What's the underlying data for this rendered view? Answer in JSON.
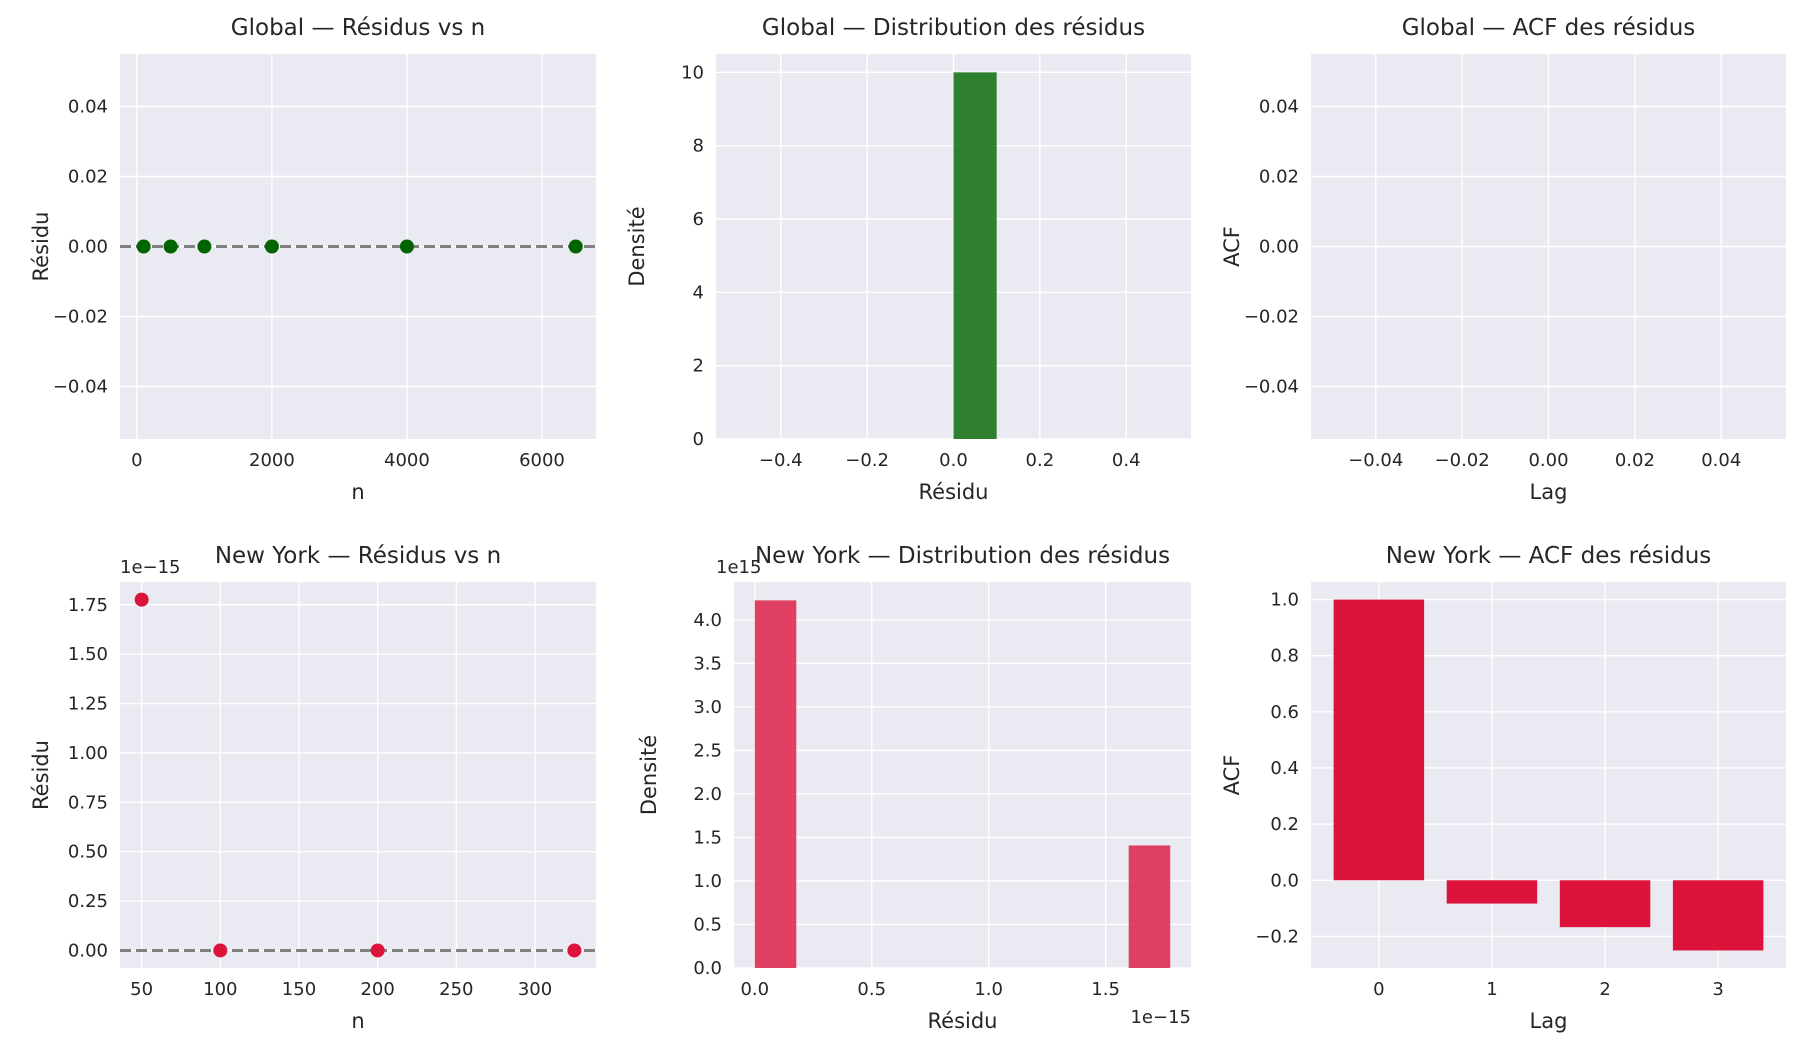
{
  "colors": {
    "global": "#006400",
    "newyork": "#dc143c",
    "zero_line": "#808080",
    "panel_bg": "#eaeaf2",
    "grid": "#ffffff"
  },
  "chart_data": [
    {
      "id": "global_resid",
      "type": "scatter",
      "title": "Global — Résidus vs n",
      "xlabel": "n",
      "ylabel": "Résidu",
      "x": [
        100,
        500,
        1000,
        2000,
        4000,
        6500
      ],
      "y": [
        0,
        0,
        0,
        0,
        0,
        0
      ],
      "xlim": [
        -250,
        6800
      ],
      "ylim": [
        -0.055,
        0.055
      ],
      "xticks": [
        0,
        2000,
        4000,
        6000
      ],
      "xtick_labels": [
        "0",
        "2000",
        "4000",
        "6000"
      ],
      "yticks": [
        -0.04,
        -0.02,
        0,
        0.02,
        0.04
      ],
      "ytick_labels": [
        "−0.04",
        "−0.02",
        "0.00",
        "0.02",
        "0.04"
      ],
      "hline": 0,
      "grid": true,
      "color": "#006400"
    },
    {
      "id": "global_hist",
      "type": "bar",
      "title": "Global — Distribution des résidus",
      "xlabel": "Résidu",
      "ylabel": "Densité",
      "bins": [
        {
          "x0": 0,
          "x1": 0.1,
          "value": 10
        }
      ],
      "xlim": [
        -0.55,
        0.55
      ],
      "ylim": [
        0,
        10.5
      ],
      "xticks": [
        -0.4,
        -0.2,
        0,
        0.2,
        0.4
      ],
      "xtick_labels": [
        "−0.4",
        "−0.2",
        "0.0",
        "0.2",
        "0.4"
      ],
      "yticks": [
        0,
        2,
        4,
        6,
        8,
        10
      ],
      "ytick_labels": [
        "0",
        "2",
        "4",
        "6",
        "8",
        "10"
      ],
      "grid": true,
      "color": "#006400"
    },
    {
      "id": "global_acf",
      "type": "bar",
      "title": "Global — ACF des résidus",
      "xlabel": "Lag",
      "ylabel": "ACF",
      "bins": [],
      "xlim": [
        -0.055,
        0.055
      ],
      "ylim": [
        -0.055,
        0.055
      ],
      "xticks": [
        -0.04,
        -0.02,
        0,
        0.02,
        0.04
      ],
      "xtick_labels": [
        "−0.04",
        "−0.02",
        "0.00",
        "0.02",
        "0.04"
      ],
      "yticks": [
        -0.04,
        -0.02,
        0,
        0.02,
        0.04
      ],
      "ytick_labels": [
        "−0.04",
        "−0.02",
        "0.00",
        "0.02",
        "0.04"
      ],
      "grid": true,
      "color": "#006400"
    },
    {
      "id": "ny_resid",
      "type": "scatter",
      "title": "New York — Résidus vs n",
      "xlabel": "n",
      "ylabel": "Résidu",
      "offset_label": "1e−15",
      "x": [
        50,
        100,
        200,
        325
      ],
      "y": [
        1.776,
        0,
        0,
        0
      ],
      "xlim": [
        36.25,
        338.75
      ],
      "ylim": [
        -0.0888,
        1.8652
      ],
      "xticks": [
        50,
        100,
        150,
        200,
        250,
        300
      ],
      "xtick_labels": [
        "50",
        "100",
        "150",
        "200",
        "250",
        "300"
      ],
      "yticks": [
        0,
        0.25,
        0.5,
        0.75,
        1,
        1.25,
        1.5,
        1.75
      ],
      "ytick_labels": [
        "0.00",
        "0.25",
        "0.50",
        "0.75",
        "1.00",
        "1.25",
        "1.50",
        "1.75"
      ],
      "hline": 0,
      "grid": true,
      "color": "#dc143c"
    },
    {
      "id": "ny_hist",
      "type": "bar",
      "title": "New York — Distribution des résidus",
      "xlabel": "Résidu",
      "ylabel": "Densité",
      "offset_label_y": "1e15",
      "offset_label_x": "1e−15",
      "bins": [
        {
          "x0": 0,
          "x1": 0.1776,
          "value": 4.223
        },
        {
          "x0": 1.5987,
          "x1": 1.7763,
          "value": 1.408
        }
      ],
      "xlim": [
        -0.0888,
        1.8651
      ],
      "ylim": [
        0,
        4.434
      ],
      "xticks": [
        0,
        0.5,
        1,
        1.5
      ],
      "xtick_labels": [
        "0.0",
        "0.5",
        "1.0",
        "1.5"
      ],
      "yticks": [
        0,
        0.5,
        1,
        1.5,
        2,
        2.5,
        3,
        3.5,
        4
      ],
      "ytick_labels": [
        "0.0",
        "0.5",
        "1.0",
        "1.5",
        "2.0",
        "2.5",
        "3.0",
        "3.5",
        "4.0"
      ],
      "grid": true,
      "color": "#dc143c"
    },
    {
      "id": "ny_acf",
      "type": "bar",
      "title": "New York — ACF des résidus",
      "xlabel": "Lag",
      "ylabel": "ACF",
      "bins": [
        {
          "x0": -0.4,
          "x1": 0.4,
          "value": 1.0
        },
        {
          "x0": 0.6,
          "x1": 1.4,
          "value": -0.083
        },
        {
          "x0": 1.6,
          "x1": 2.4,
          "value": -0.167
        },
        {
          "x0": 2.6,
          "x1": 3.4,
          "value": -0.25
        }
      ],
      "xlim": [
        -0.6,
        3.6
      ],
      "ylim": [
        -0.3125,
        1.0625
      ],
      "xticks": [
        0,
        1,
        2,
        3
      ],
      "xtick_labels": [
        "0",
        "1",
        "2",
        "3"
      ],
      "yticks": [
        -0.2,
        0,
        0.2,
        0.4,
        0.6,
        0.8,
        1.0
      ],
      "ytick_labels": [
        "−0.2",
        "0.0",
        "0.2",
        "0.4",
        "0.6",
        "0.8",
        "1.0"
      ],
      "grid": true,
      "color": "#dc143c"
    }
  ]
}
